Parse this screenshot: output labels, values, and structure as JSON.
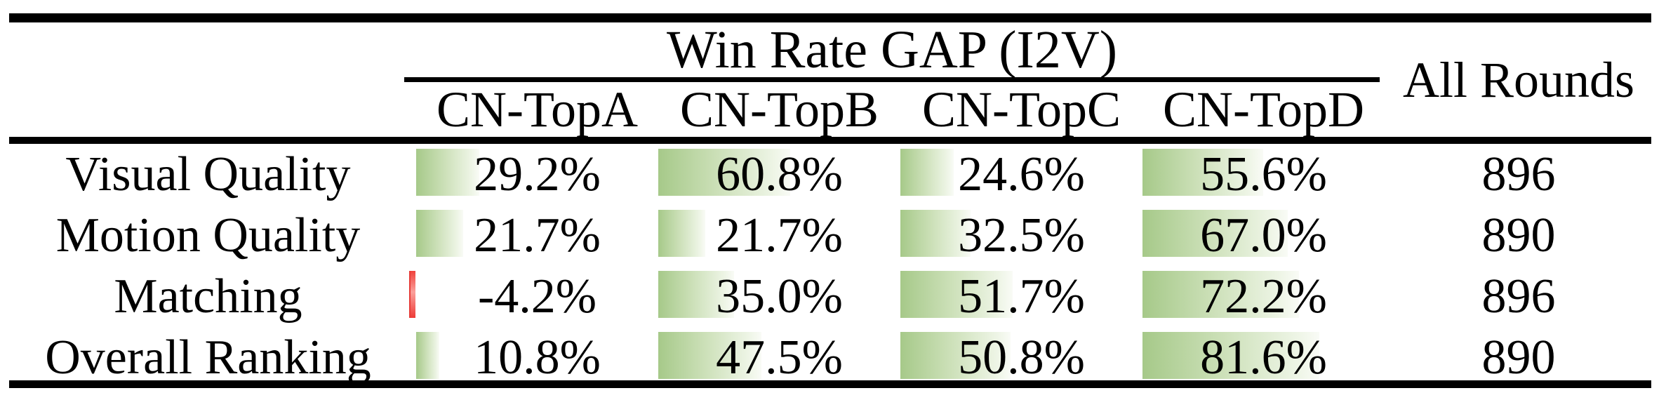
{
  "table": {
    "group_header": "Win Rate GAP (I2V)",
    "all_rounds_header": "All Rounds",
    "columns": [
      "CN-TopA",
      "CN-TopB",
      "CN-TopC",
      "CN-TopD"
    ],
    "rows": [
      {
        "label": "Visual Quality",
        "cells": [
          {
            "text": "29.2%",
            "value": 29.2
          },
          {
            "text": "60.8%",
            "value": 60.8
          },
          {
            "text": "24.6%",
            "value": 24.6
          },
          {
            "text": "55.6%",
            "value": 55.6
          }
        ],
        "all_rounds": "896"
      },
      {
        "label": "Motion Quality",
        "cells": [
          {
            "text": "21.7%",
            "value": 21.7
          },
          {
            "text": "21.7%",
            "value": 21.7
          },
          {
            "text": "32.5%",
            "value": 32.5
          },
          {
            "text": "67.0%",
            "value": 67.0
          }
        ],
        "all_rounds": "890"
      },
      {
        "label": "Matching",
        "cells": [
          {
            "text": "-4.2%",
            "value": -4.2
          },
          {
            "text": "35.0%",
            "value": 35.0
          },
          {
            "text": "51.7%",
            "value": 51.7
          },
          {
            "text": "72.2%",
            "value": 72.2
          }
        ],
        "all_rounds": "896"
      },
      {
        "label": "Overall Ranking",
        "cells": [
          {
            "text": "10.8%",
            "value": 10.8
          },
          {
            "text": "47.5%",
            "value": 47.5
          },
          {
            "text": "50.8%",
            "value": 50.8
          },
          {
            "text": "81.6%",
            "value": 81.6
          }
        ],
        "all_rounds": "890"
      }
    ],
    "colors": {
      "bar_positive_start": "#a6c989",
      "bar_positive_end": "#f9fbf6",
      "bar_negative": "#ee3b37",
      "text": "#000000",
      "rule": "#000000"
    }
  },
  "chart_data": {
    "type": "table",
    "title": "Win Rate GAP (I2V)",
    "categories": [
      "Visual Quality",
      "Motion Quality",
      "Matching",
      "Overall Ranking"
    ],
    "series": [
      {
        "name": "CN-TopA",
        "values": [
          29.2,
          21.7,
          -4.2,
          10.8
        ]
      },
      {
        "name": "CN-TopB",
        "values": [
          60.8,
          21.7,
          35.0,
          47.5
        ]
      },
      {
        "name": "CN-TopC",
        "values": [
          24.6,
          32.5,
          51.7,
          50.8
        ]
      },
      {
        "name": "CN-TopD",
        "values": [
          55.6,
          67.0,
          72.2,
          81.6
        ]
      }
    ],
    "all_rounds": [
      896,
      890,
      896,
      890
    ],
    "value_unit": "%"
  }
}
